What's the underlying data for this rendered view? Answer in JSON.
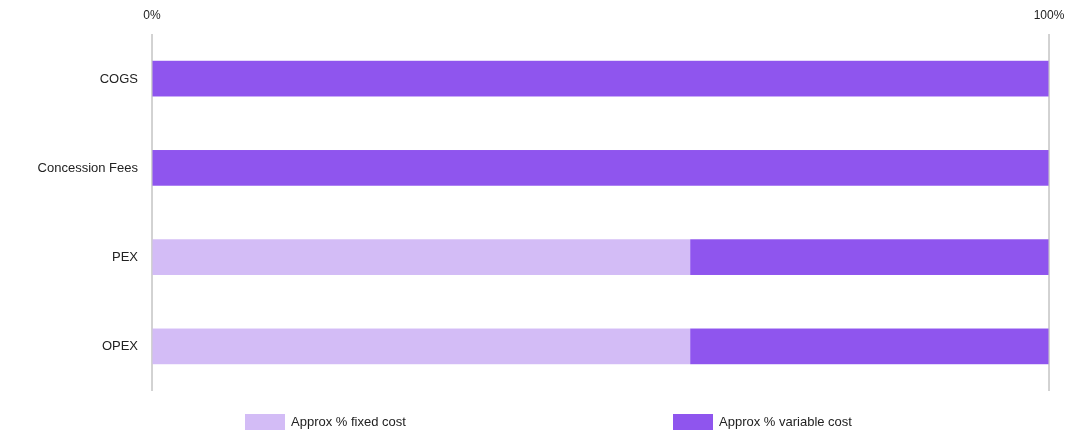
{
  "chart_data": {
    "type": "bar",
    "orientation": "horizontal",
    "stacked": true,
    "categories": [
      "COGS",
      "Concession Fees",
      "PEX",
      "OPEX"
    ],
    "series": [
      {
        "name": "Approx % fixed cost",
        "color": "#d3bcf6",
        "values": [
          0,
          0,
          60,
          60
        ]
      },
      {
        "name": "Approx % variable cost",
        "color": "#8f55ee",
        "values": [
          100,
          100,
          40,
          40
        ]
      }
    ],
    "xlim": [
      0,
      100
    ],
    "xticks": [
      {
        "value": 0,
        "label": "0%"
      },
      {
        "value": 100,
        "label": "100%"
      }
    ],
    "grid": "x",
    "legend": "bottom"
  }
}
